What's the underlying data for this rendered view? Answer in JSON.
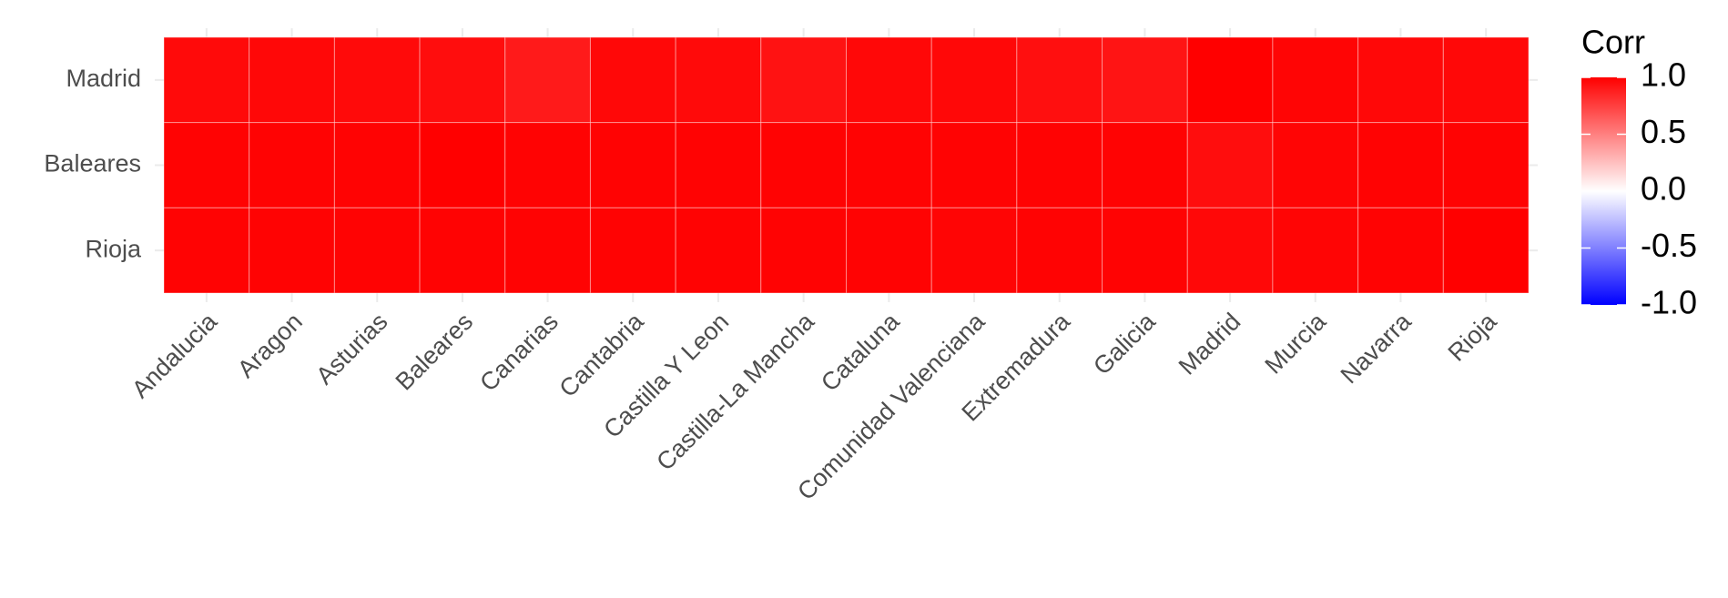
{
  "chart_data": {
    "type": "heatmap",
    "x_categories": [
      "Andalucia",
      "Aragon",
      "Asturias",
      "Baleares",
      "Canarias",
      "Cantabria",
      "Castilla Y Leon",
      "Castilla-La Mancha",
      "Cataluna",
      "Comunidad Valenciana",
      "Extremadura",
      "Galicia",
      "Madrid",
      "Murcia",
      "Navarra",
      "Rioja"
    ],
    "y_categories": [
      "Madrid",
      "Baleares",
      "Rioja"
    ],
    "values": [
      [
        0.96,
        0.97,
        0.96,
        0.95,
        0.9,
        0.97,
        0.96,
        0.93,
        0.97,
        0.97,
        0.94,
        0.92,
        1.0,
        0.98,
        0.97,
        0.97
      ],
      [
        0.99,
        0.99,
        0.99,
        1.0,
        0.99,
        0.99,
        0.99,
        0.99,
        0.99,
        0.99,
        0.99,
        0.99,
        0.95,
        0.98,
        0.99,
        0.99
      ],
      [
        0.99,
        0.99,
        0.99,
        0.99,
        0.99,
        0.99,
        0.99,
        0.99,
        0.99,
        0.98,
        0.99,
        0.99,
        0.97,
        0.98,
        0.99,
        1.0
      ]
    ],
    "legend_title": "Corr",
    "colors": {
      "low": "#0000ff",
      "mid": "#ffffff",
      "high": "#ff0000"
    },
    "clim": [
      -1,
      1
    ],
    "cticks": [
      {
        "value": -1,
        "label": "-1.0"
      },
      -0.5,
      {
        "value": 0,
        "label": "0.0"
      },
      0.5,
      {
        "value": 1,
        "label": "1.0"
      }
    ],
    "grid": true
  }
}
